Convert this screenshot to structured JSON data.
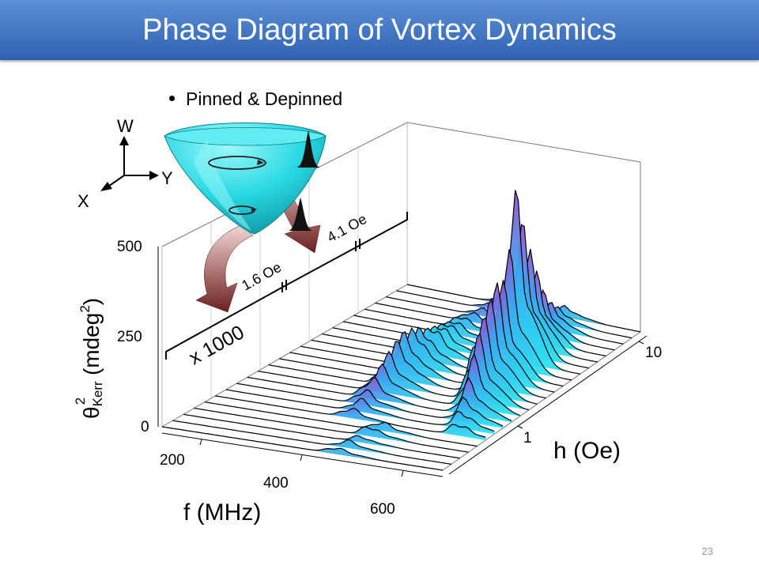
{
  "slide": {
    "title": "Phase Diagram of Vortex Dynamics",
    "bullet": "Pinned & Depinned",
    "page_number": "23"
  },
  "axes_diagram": {
    "w_label": "W",
    "y_label": "Y",
    "x_label": "X"
  },
  "chart_data": {
    "type": "area",
    "title": "",
    "zlabel_main": "θ",
    "zlabel_sub": "Kerr",
    "zlabel_sup": "2",
    "zlabel_unit": " (mdeg",
    "zlabel_unit_sup": "2",
    "zlabel_close": ")",
    "z_ticks": [
      "0",
      "250",
      "500"
    ],
    "zlim": [
      0,
      500
    ],
    "xlabel": "f (MHz)",
    "x_ticks": [
      "200",
      "400",
      "600"
    ],
    "hlabel": "h (Oe)",
    "h_ticks": [
      "1",
      "10"
    ],
    "h_scale": "log",
    "annotations": {
      "scale_factor": "x 1000",
      "field_low": "1.6 Oe",
      "field_high": "4.1 Oe"
    },
    "series_count": 24
  },
  "colors": {
    "title_bar_top": "#5b8fd6",
    "title_bar_bottom": "#2f62b3",
    "peak_low": "#2be6f0",
    "peak_high": "#9a4fd0",
    "arrow": "#7a2b2b"
  }
}
